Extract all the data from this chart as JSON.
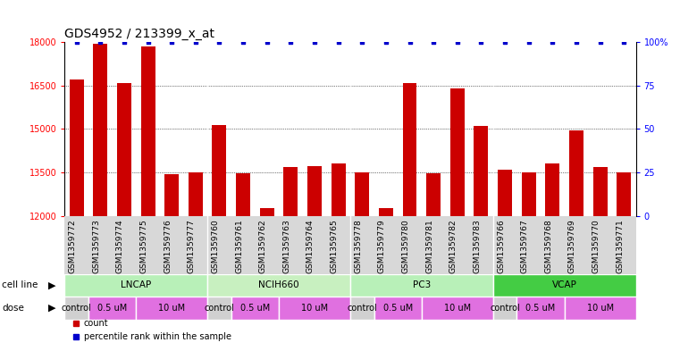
{
  "title": "GDS4952 / 213399_x_at",
  "samples": [
    "GSM1359772",
    "GSM1359773",
    "GSM1359774",
    "GSM1359775",
    "GSM1359776",
    "GSM1359777",
    "GSM1359760",
    "GSM1359761",
    "GSM1359762",
    "GSM1359763",
    "GSM1359764",
    "GSM1359765",
    "GSM1359778",
    "GSM1359779",
    "GSM1359780",
    "GSM1359781",
    "GSM1359782",
    "GSM1359783",
    "GSM1359766",
    "GSM1359767",
    "GSM1359768",
    "GSM1359769",
    "GSM1359770",
    "GSM1359771"
  ],
  "counts": [
    16700,
    17950,
    16600,
    17850,
    13450,
    13500,
    15150,
    13480,
    12280,
    13680,
    13720,
    13800,
    13500,
    12280,
    16600,
    13480,
    16400,
    15100,
    13580,
    13500,
    13800,
    14950,
    13680,
    13500
  ],
  "cell_lines": [
    {
      "name": "LNCAP",
      "start": 0,
      "end": 6,
      "color": "#b8f0b8"
    },
    {
      "name": "NCIH660",
      "start": 6,
      "end": 12,
      "color": "#c8f0c0"
    },
    {
      "name": "PC3",
      "start": 12,
      "end": 18,
      "color": "#b8f0b8"
    },
    {
      "name": "VCAP",
      "start": 18,
      "end": 24,
      "color": "#44cc44"
    }
  ],
  "dose_blocks": [
    {
      "label": "control",
      "start": 0,
      "end": 1,
      "color": "#d0d0d0"
    },
    {
      "label": "0.5 uM",
      "start": 1,
      "end": 3,
      "color": "#e070e0"
    },
    {
      "label": "10 uM",
      "start": 3,
      "end": 6,
      "color": "#e070e0"
    },
    {
      "label": "control",
      "start": 6,
      "end": 7,
      "color": "#d0d0d0"
    },
    {
      "label": "0.5 uM",
      "start": 7,
      "end": 9,
      "color": "#e070e0"
    },
    {
      "label": "10 uM",
      "start": 9,
      "end": 12,
      "color": "#e070e0"
    },
    {
      "label": "control",
      "start": 12,
      "end": 13,
      "color": "#d0d0d0"
    },
    {
      "label": "0.5 uM",
      "start": 13,
      "end": 15,
      "color": "#e070e0"
    },
    {
      "label": "10 uM",
      "start": 15,
      "end": 18,
      "color": "#e070e0"
    },
    {
      "label": "control",
      "start": 18,
      "end": 19,
      "color": "#d0d0d0"
    },
    {
      "label": "0.5 uM",
      "start": 19,
      "end": 21,
      "color": "#e070e0"
    },
    {
      "label": "10 uM",
      "start": 21,
      "end": 24,
      "color": "#e070e0"
    }
  ],
  "ylim": [
    12000,
    18000
  ],
  "yticks_left": [
    12000,
    13500,
    15000,
    16500,
    18000
  ],
  "yticks_right_labels": [
    "0",
    "25",
    "50",
    "75",
    "100%"
  ],
  "bar_color": "#cc0000",
  "percentile_color": "#0000cc",
  "bg_color": "#ffffff",
  "tick_bg_color": "#d8d8d8",
  "title_fontsize": 10,
  "tick_fontsize": 7,
  "sample_fontsize": 6.5,
  "annotation_fontsize": 7.5,
  "legend_fontsize": 7
}
